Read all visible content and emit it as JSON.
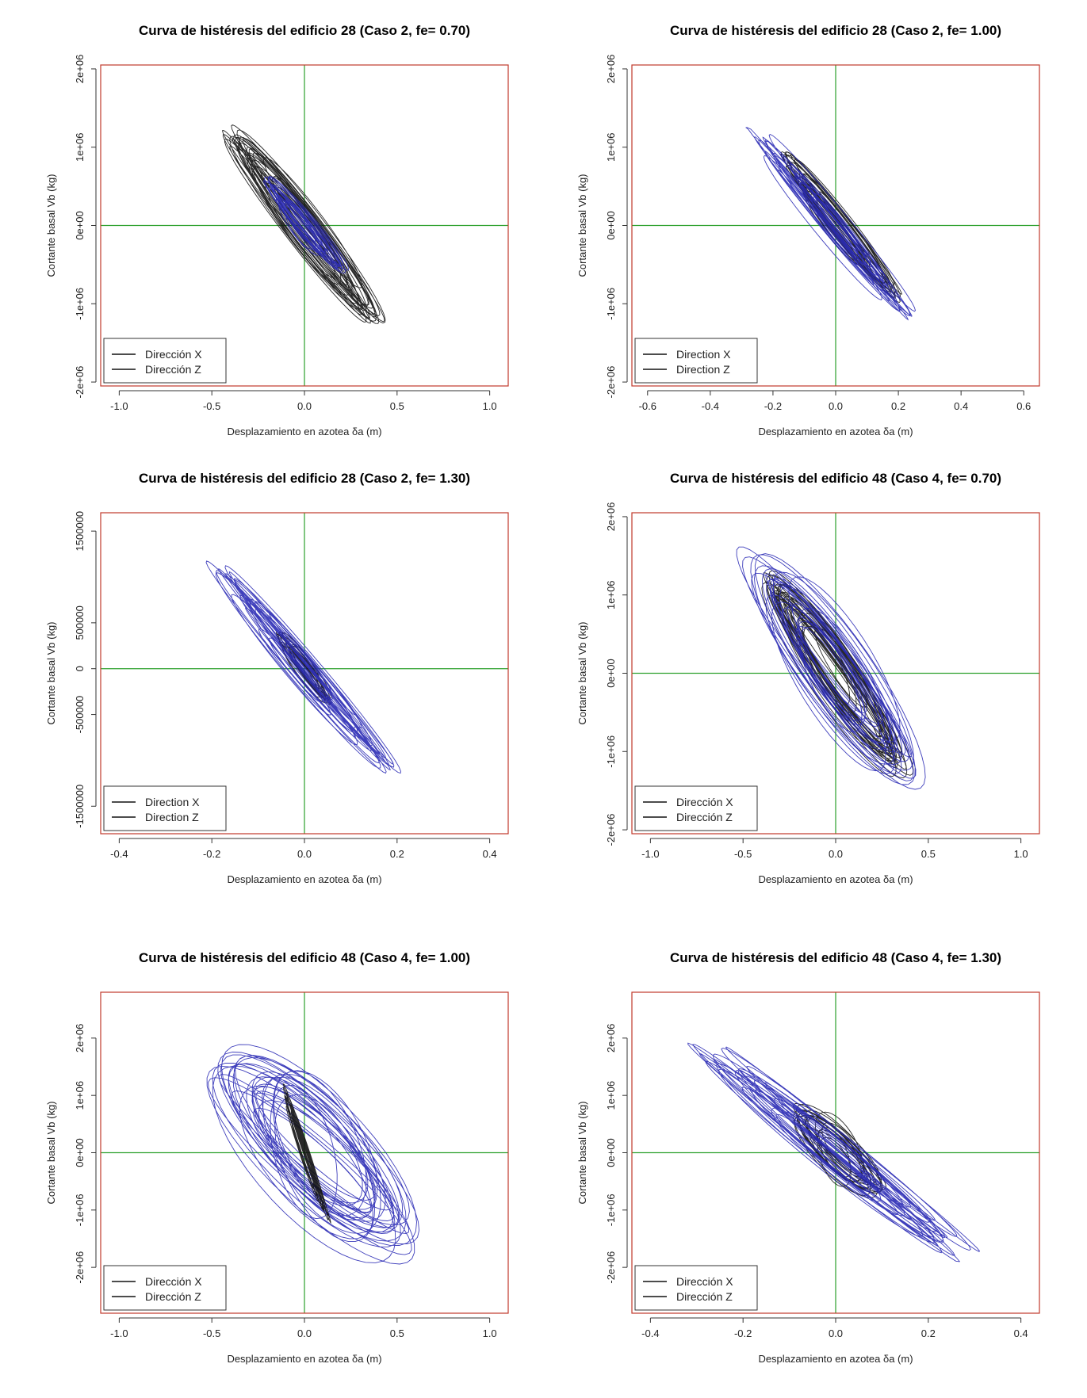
{
  "chart_data": [
    {
      "type": "line",
      "title": "Curva de histéresis del edificio 28  (Caso 2, fe= 0.70)",
      "xlabel": "Desplazamiento en azotea δa (m)",
      "ylabel": "Cortante basal Vb (kg)",
      "xlim": [
        -1.1,
        1.1
      ],
      "ylim": [
        -2050000,
        2050000
      ],
      "x_ticks": [
        -1.0,
        -0.5,
        0.0,
        0.5,
        1.0
      ],
      "x_tick_labels": [
        "-1.0",
        "-0.5",
        "0.0",
        "0.5",
        "1.0"
      ],
      "y_ticks": [
        -2000000,
        -1000000,
        0,
        1000000,
        2000000
      ],
      "y_tick_labels": [
        "-2e+06",
        "-1e+06",
        "0e+00",
        "1e+06",
        "2e+06"
      ],
      "legend": {
        "position": "bottom-left",
        "entries": [
          "Dirección X",
          "Dirección Z"
        ]
      },
      "series": [
        {
          "name": "Dirección X",
          "color": "#111111",
          "extent_x": [
            -0.42,
            0.42
          ],
          "extent_y": [
            -1450000,
            1350000
          ],
          "slope": -3000000,
          "band": 260000,
          "loops": 28,
          "seed": 11
        },
        {
          "name": "Dirección Z",
          "color": "#2a2ab5",
          "extent_x": [
            -0.22,
            0.22
          ],
          "extent_y": [
            -650000,
            650000
          ],
          "slope": -2700000,
          "band": 170000,
          "loops": 18,
          "seed": 12
        }
      ]
    },
    {
      "type": "line",
      "title": "Curva de histéresis del edificio 28  (Caso 2, fe= 1.00)",
      "xlabel": "Desplazamiento en azotea δa (m)",
      "ylabel": "Cortante basal Vb (kg)",
      "xlim": [
        -0.65,
        0.65
      ],
      "ylim": [
        -2050000,
        2050000
      ],
      "x_ticks": [
        -0.6,
        -0.4,
        -0.2,
        0.0,
        0.2,
        0.4,
        0.6
      ],
      "x_tick_labels": [
        "-0.6",
        "-0.4",
        "-0.2",
        "0.0",
        "0.2",
        "0.4",
        "0.6"
      ],
      "y_ticks": [
        -2000000,
        -1000000,
        0,
        1000000,
        2000000
      ],
      "y_tick_labels": [
        "-2e+06",
        "-1e+06",
        "0e+00",
        "1e+06",
        "2e+06"
      ],
      "legend": {
        "position": "bottom-left",
        "entries": [
          "Direction X",
          "Direction Z"
        ]
      },
      "series": [
        {
          "name": "Direction X",
          "color": "#111111",
          "extent_x": [
            -0.18,
            0.2
          ],
          "extent_y": [
            -1100000,
            1150000
          ],
          "slope": -5000000,
          "band": 170000,
          "loops": 24,
          "seed": 21
        },
        {
          "name": "Direction Z",
          "color": "#2a2ab5",
          "extent_x": [
            -0.27,
            0.25
          ],
          "extent_y": [
            -1250000,
            1250000
          ],
          "slope": -4800000,
          "band": 150000,
          "loops": 22,
          "seed": 22
        }
      ]
    },
    {
      "type": "line",
      "title": "Curva de histéresis del edificio 28  (Caso 2, fe= 1.30)",
      "xlabel": "Desplazamiento en azotea δa (m)",
      "ylabel": "Cortante basal Vb (kg)",
      "xlim": [
        -0.44,
        0.44
      ],
      "ylim": [
        -1800000,
        1700000
      ],
      "x_ticks": [
        -0.4,
        -0.2,
        0.0,
        0.2,
        0.4
      ],
      "x_tick_labels": [
        "-0.4",
        "-0.2",
        "0.0",
        "0.2",
        "0.4"
      ],
      "y_ticks": [
        -1500000,
        -500000,
        0,
        500000,
        1500000
      ],
      "y_tick_labels": [
        "-1500000",
        "-500000",
        "0",
        "500000",
        "1500000"
      ],
      "legend": {
        "position": "bottom-left",
        "entries": [
          "Direction X",
          "Direction Z"
        ]
      },
      "series": [
        {
          "name": "Direction X",
          "color": "#111111",
          "extent_x": [
            -0.06,
            0.06
          ],
          "extent_y": [
            -900000,
            600000
          ],
          "slope": -6500000,
          "band": 120000,
          "loops": 12,
          "seed": 31
        },
        {
          "name": "Direction Z",
          "color": "#2a2ab5",
          "extent_x": [
            -0.2,
            0.2
          ],
          "extent_y": [
            -1180000,
            1180000
          ],
          "slope": -5900000,
          "band": 160000,
          "loops": 22,
          "seed": 32
        }
      ]
    },
    {
      "type": "line",
      "title": "Curva de histéresis del edificio 48  (Caso 4, fe= 0.70)",
      "xlabel": "Desplazamiento en azotea δa (m)",
      "ylabel": "Cortante basal Vb (kg)",
      "xlim": [
        -1.1,
        1.1
      ],
      "ylim": [
        -2050000,
        2050000
      ],
      "x_ticks": [
        -1.0,
        -0.5,
        0.0,
        0.5,
        1.0
      ],
      "x_tick_labels": [
        "-1.0",
        "-0.5",
        "0.0",
        "0.5",
        "1.0"
      ],
      "y_ticks": [
        -2000000,
        -1000000,
        0,
        1000000,
        2000000
      ],
      "y_tick_labels": [
        "-2e+06",
        "-1e+06",
        "0e+00",
        "1e+06",
        "2e+06"
      ],
      "legend": {
        "position": "bottom-left",
        "entries": [
          "Dirección X",
          "Dirección Z"
        ]
      },
      "series": [
        {
          "name": "Dirección X",
          "color": "#111111",
          "extent_x": [
            -0.4,
            0.38
          ],
          "extent_y": [
            -1800000,
            1700000
          ],
          "slope": -3200000,
          "band": 420000,
          "loops": 30,
          "seed": 41
        },
        {
          "name": "Dirección Z",
          "color": "#2a2ab5",
          "extent_x": [
            -0.52,
            0.5
          ],
          "extent_y": [
            -1650000,
            1650000
          ],
          "slope": -2900000,
          "band": 600000,
          "loops": 26,
          "seed": 42
        }
      ]
    },
    {
      "type": "line",
      "title": "Curva de histéresis del edificio 48  (Caso 4, fe= 1.00)",
      "xlabel": "Desplazamiento en azotea δa (m)",
      "ylabel": "Cortante basal Vb (kg)",
      "xlim": [
        -1.1,
        1.1
      ],
      "ylim": [
        -2800000,
        2800000
      ],
      "x_ticks": [
        -1.0,
        -0.5,
        0.0,
        0.5,
        1.0
      ],
      "x_tick_labels": [
        "-1.0",
        "-0.5",
        "0.0",
        "0.5",
        "1.0"
      ],
      "y_ticks": [
        -2000000,
        -1000000,
        0,
        1000000,
        2000000
      ],
      "y_tick_labels": [
        "-2e+06",
        "-1e+06",
        "0e+00",
        "1e+06",
        "2e+06"
      ],
      "legend": {
        "position": "bottom-left",
        "entries": [
          "Dirección X",
          "Dirección Z"
        ]
      },
      "series": [
        {
          "name": "Dirección Z",
          "color": "#2a2ab5",
          "extent_x": [
            -0.52,
            0.62
          ],
          "extent_y": [
            -2150000,
            2150000
          ],
          "slope": -2600000,
          "band": 950000,
          "loops": 30,
          "seed": 52
        },
        {
          "name": "Dirección X",
          "color": "#111111",
          "extent_x": [
            -0.13,
            0.13
          ],
          "extent_y": [
            -1300000,
            1200000
          ],
          "slope": -9500000,
          "band": 130000,
          "loops": 16,
          "seed": 51
        }
      ]
    },
    {
      "type": "line",
      "title": "Curva de histéresis del edificio 48  (Caso 4, fe= 1.30)",
      "xlabel": "Desplazamiento en azotea δa (m)",
      "ylabel": "Cortante basal Vb (kg)",
      "xlim": [
        -0.44,
        0.44
      ],
      "ylim": [
        -2800000,
        2800000
      ],
      "x_ticks": [
        -0.4,
        -0.2,
        0.0,
        0.2,
        0.4
      ],
      "x_tick_labels": [
        "-0.4",
        "-0.2",
        "0.0",
        "0.2",
        "0.4"
      ],
      "y_ticks": [
        -2000000,
        -1000000,
        0,
        1000000,
        2000000
      ],
      "y_tick_labels": [
        "-2e+06",
        "-1e+06",
        "0e+00",
        "1e+06",
        "2e+06"
      ],
      "legend": {
        "position": "bottom-left",
        "entries": [
          "Dirección X",
          "Dirección Z"
        ]
      },
      "series": [
        {
          "name": "Dirección X",
          "color": "#111111",
          "extent_x": [
            -0.1,
            0.11
          ],
          "extent_y": [
            -1100000,
            1200000
          ],
          "slope": -7000000,
          "band": 420000,
          "loops": 20,
          "seed": 61
        },
        {
          "name": "Dirección Z",
          "color": "#2a2ab5",
          "extent_x": [
            -0.3,
            0.3
          ],
          "extent_y": [
            -1900000,
            2000000
          ],
          "slope": -6500000,
          "band": 260000,
          "loops": 24,
          "seed": 62
        }
      ]
    }
  ],
  "colors": {
    "frame": "#c0392b",
    "crosshair": "#2ca02c",
    "series_x": "#111111",
    "series_z": "#2a2ab5"
  }
}
